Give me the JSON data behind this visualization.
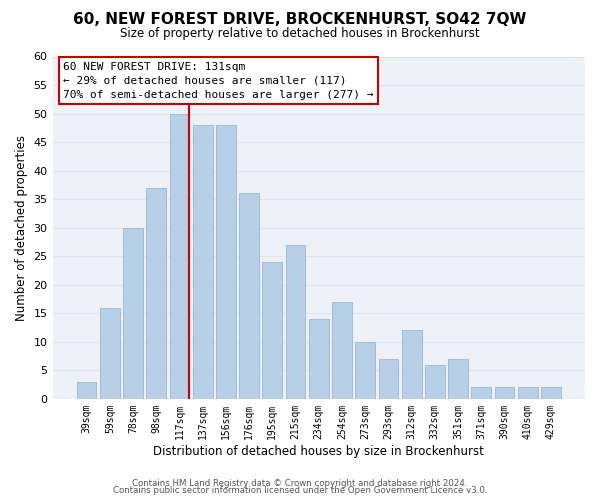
{
  "title": "60, NEW FOREST DRIVE, BROCKENHURST, SO42 7QW",
  "subtitle": "Size of property relative to detached houses in Brockenhurst",
  "xlabel": "Distribution of detached houses by size in Brockenhurst",
  "ylabel": "Number of detached properties",
  "footer_line1": "Contains HM Land Registry data © Crown copyright and database right 2024.",
  "footer_line2": "Contains public sector information licensed under the Open Government Licence v3.0.",
  "categories": [
    "39sqm",
    "59sqm",
    "78sqm",
    "98sqm",
    "117sqm",
    "137sqm",
    "156sqm",
    "176sqm",
    "195sqm",
    "215sqm",
    "234sqm",
    "254sqm",
    "273sqm",
    "293sqm",
    "312sqm",
    "332sqm",
    "351sqm",
    "371sqm",
    "390sqm",
    "410sqm",
    "429sqm"
  ],
  "values": [
    3,
    16,
    30,
    37,
    50,
    48,
    48,
    36,
    24,
    27,
    14,
    17,
    10,
    7,
    12,
    6,
    7,
    2,
    2,
    2,
    2
  ],
  "bar_color": "#b8cfe8",
  "bar_edge_color": "#9ab8d8",
  "highlight_line_color": "#cc0000",
  "highlight_line_index": 4,
  "ylim": [
    0,
    60
  ],
  "yticks": [
    0,
    5,
    10,
    15,
    20,
    25,
    30,
    35,
    40,
    45,
    50,
    55,
    60
  ],
  "annotation_title": "60 NEW FOREST DRIVE: 131sqm",
  "annotation_line1": "← 29% of detached houses are smaller (117)",
  "annotation_line2": "70% of semi-detached houses are larger (277) →",
  "annotation_box_edge": "#cc0000",
  "grid_color": "#dde6f0",
  "background_color": "#ffffff",
  "plot_background": "#eef2f8"
}
